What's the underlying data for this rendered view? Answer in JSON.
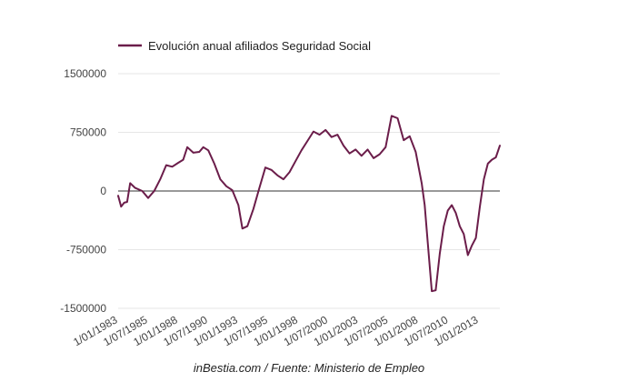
{
  "chart_data": {
    "type": "line",
    "legend": "top-left",
    "grid": true,
    "ylim": [
      -1500000,
      1500000
    ],
    "y_ticks": [
      {
        "value": 1500000,
        "label": "1500000"
      },
      {
        "value": 750000,
        "label": "750000"
      },
      {
        "value": 0,
        "label": "0"
      },
      {
        "value": -750000,
        "label": "-750000"
      },
      {
        "value": -1500000,
        "label": "-1500000"
      }
    ],
    "x_ticks": [
      {
        "date": "1983-01-01",
        "label": "1/01/1983"
      },
      {
        "date": "1985-07-01",
        "label": "1/07/1985"
      },
      {
        "date": "1988-01-01",
        "label": "1/01/1988"
      },
      {
        "date": "1990-07-01",
        "label": "1/07/1990"
      },
      {
        "date": "1993-01-01",
        "label": "1/01/1993"
      },
      {
        "date": "1995-07-01",
        "label": "1/07/1995"
      },
      {
        "date": "1998-01-01",
        "label": "1/01/1998"
      },
      {
        "date": "2000-07-01",
        "label": "1/07/2000"
      },
      {
        "date": "2003-01-01",
        "label": "1/01/2003"
      },
      {
        "date": "2005-07-01",
        "label": "1/07/2005"
      },
      {
        "date": "2008-01-01",
        "label": "1/01/2008"
      },
      {
        "date": "2010-07-01",
        "label": "1/07/2010"
      },
      {
        "date": "2013-01-01",
        "label": "1/01/2013"
      }
    ],
    "source": "inBestia.com / Fuente: Ministerio de Empleo",
    "series": [
      {
        "name": "Evolución anual afiliados Seguridad Social",
        "color": "#6b1d4a",
        "points": [
          [
            "1983-01-01",
            -60000
          ],
          [
            "1983-04-01",
            -200000
          ],
          [
            "1983-07-01",
            -150000
          ],
          [
            "1983-10-01",
            -140000
          ],
          [
            "1984-01-01",
            100000
          ],
          [
            "1984-06-01",
            40000
          ],
          [
            "1985-01-01",
            0
          ],
          [
            "1985-07-01",
            -90000
          ],
          [
            "1986-01-01",
            0
          ],
          [
            "1986-07-01",
            150000
          ],
          [
            "1987-01-01",
            330000
          ],
          [
            "1987-07-01",
            310000
          ],
          [
            "1988-01-01",
            360000
          ],
          [
            "1988-06-01",
            400000
          ],
          [
            "1988-10-01",
            560000
          ],
          [
            "1989-04-01",
            490000
          ],
          [
            "1989-10-01",
            500000
          ],
          [
            "1990-02-01",
            560000
          ],
          [
            "1990-07-01",
            520000
          ],
          [
            "1991-01-01",
            350000
          ],
          [
            "1991-07-01",
            150000
          ],
          [
            "1992-01-01",
            60000
          ],
          [
            "1992-07-01",
            10000
          ],
          [
            "1993-01-01",
            -180000
          ],
          [
            "1993-05-01",
            -480000
          ],
          [
            "1993-10-01",
            -450000
          ],
          [
            "1994-04-01",
            -230000
          ],
          [
            "1994-10-01",
            40000
          ],
          [
            "1995-04-01",
            300000
          ],
          [
            "1995-10-01",
            270000
          ],
          [
            "1996-04-01",
            200000
          ],
          [
            "1996-10-01",
            150000
          ],
          [
            "1997-04-01",
            240000
          ],
          [
            "1997-10-01",
            380000
          ],
          [
            "1998-04-01",
            520000
          ],
          [
            "1998-10-01",
            640000
          ],
          [
            "1999-04-01",
            760000
          ],
          [
            "1999-10-01",
            720000
          ],
          [
            "2000-04-01",
            780000
          ],
          [
            "2000-10-01",
            690000
          ],
          [
            "2001-04-01",
            720000
          ],
          [
            "2001-10-01",
            580000
          ],
          [
            "2002-04-01",
            480000
          ],
          [
            "2002-10-01",
            530000
          ],
          [
            "2003-04-01",
            450000
          ],
          [
            "2003-10-01",
            530000
          ],
          [
            "2004-04-01",
            420000
          ],
          [
            "2004-10-01",
            470000
          ],
          [
            "2005-04-01",
            560000
          ],
          [
            "2005-10-01",
            960000
          ],
          [
            "2006-04-01",
            930000
          ],
          [
            "2006-10-01",
            650000
          ],
          [
            "2007-04-01",
            700000
          ],
          [
            "2007-10-01",
            500000
          ],
          [
            "2008-04-01",
            100000
          ],
          [
            "2008-07-01",
            -180000
          ],
          [
            "2008-10-01",
            -650000
          ],
          [
            "2009-02-01",
            -1280000
          ],
          [
            "2009-06-01",
            -1270000
          ],
          [
            "2009-10-01",
            -800000
          ],
          [
            "2010-02-01",
            -450000
          ],
          [
            "2010-06-01",
            -250000
          ],
          [
            "2010-10-01",
            -180000
          ],
          [
            "2011-02-01",
            -280000
          ],
          [
            "2011-06-01",
            -450000
          ],
          [
            "2011-10-01",
            -550000
          ],
          [
            "2012-02-01",
            -820000
          ],
          [
            "2012-06-01",
            -700000
          ],
          [
            "2012-10-01",
            -600000
          ],
          [
            "2013-02-01",
            -200000
          ],
          [
            "2013-06-01",
            150000
          ],
          [
            "2013-10-01",
            350000
          ],
          [
            "2014-02-01",
            400000
          ],
          [
            "2014-06-01",
            430000
          ],
          [
            "2014-10-01",
            580000
          ]
        ]
      }
    ]
  }
}
